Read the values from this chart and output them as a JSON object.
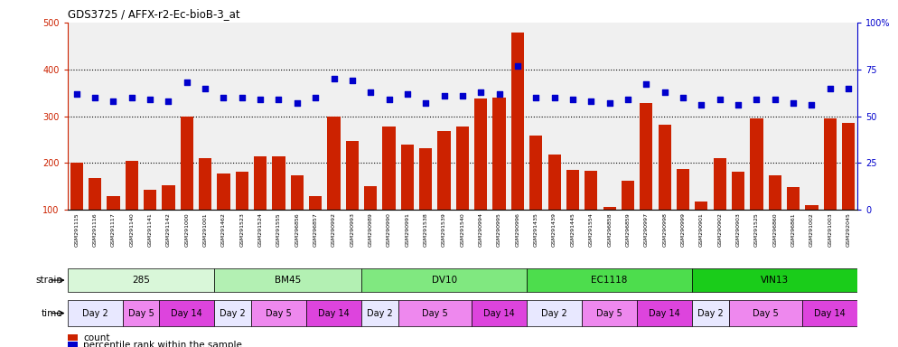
{
  "title": "GDS3725 / AFFX-r2-Ec-bioB-3_at",
  "samples": [
    "GSM291115",
    "GSM291116",
    "GSM291117",
    "GSM291140",
    "GSM291141",
    "GSM291142",
    "GSM291000",
    "GSM291001",
    "GSM291462",
    "GSM291523",
    "GSM291524",
    "GSM291555",
    "GSM296856",
    "GSM296857",
    "GSM290992",
    "GSM290993",
    "GSM290989",
    "GSM290990",
    "GSM290991",
    "GSM291538",
    "GSM291539",
    "GSM291540",
    "GSM290994",
    "GSM290995",
    "GSM290996",
    "GSM291435",
    "GSM291439",
    "GSM291445",
    "GSM291554",
    "GSM296858",
    "GSM296859",
    "GSM290997",
    "GSM290998",
    "GSM290999",
    "GSM290901",
    "GSM290902",
    "GSM290903",
    "GSM291525",
    "GSM296860",
    "GSM296861",
    "GSM291002",
    "GSM291003",
    "GSM292045"
  ],
  "counts": [
    200,
    168,
    130,
    205,
    143,
    152,
    300,
    210,
    178,
    182,
    215,
    215,
    173,
    130,
    300,
    248,
    150,
    278,
    240,
    232,
    268,
    278,
    338,
    340,
    478,
    258,
    218,
    185,
    183,
    107,
    162,
    328,
    282,
    188,
    118,
    210,
    182,
    295,
    173,
    148,
    110,
    295,
    286
  ],
  "percentiles": [
    62,
    60,
    58,
    60,
    59,
    58,
    68,
    65,
    60,
    60,
    59,
    59,
    57,
    60,
    70,
    69,
    63,
    59,
    62,
    57,
    61,
    61,
    63,
    62,
    77,
    60,
    60,
    59,
    58,
    57,
    59,
    67,
    63,
    60,
    56,
    59,
    56,
    59,
    59,
    57,
    56,
    65,
    65
  ],
  "bar_color": "#cc2200",
  "scatter_color": "#0000cc",
  "ylim_left": [
    100,
    500
  ],
  "ylim_right": [
    0,
    100
  ],
  "yticks_left": [
    100,
    200,
    300,
    400,
    500
  ],
  "yticks_right": [
    0,
    25,
    50,
    75,
    100
  ],
  "ytick_labels_right": [
    "0",
    "25",
    "50",
    "75",
    "100%"
  ],
  "hlines": [
    200,
    300,
    400
  ],
  "strains": [
    {
      "label": "285",
      "start": 0,
      "end": 8,
      "color": "#d9f7d9"
    },
    {
      "label": "BM45",
      "start": 8,
      "end": 16,
      "color": "#b3f0b3"
    },
    {
      "label": "DV10",
      "start": 16,
      "end": 25,
      "color": "#80e880"
    },
    {
      "label": "EC1118",
      "start": 25,
      "end": 34,
      "color": "#4ddd4d"
    },
    {
      "label": "VIN13",
      "start": 34,
      "end": 43,
      "color": "#1acc1a"
    }
  ],
  "times": [
    {
      "label": "Day 2",
      "start": 0,
      "end": 3,
      "color": "#e8e8ff"
    },
    {
      "label": "Day 5",
      "start": 3,
      "end": 5,
      "color": "#ee88ee"
    },
    {
      "label": "Day 14",
      "start": 5,
      "end": 8,
      "color": "#dd44dd"
    },
    {
      "label": "Day 2",
      "start": 8,
      "end": 10,
      "color": "#e8e8ff"
    },
    {
      "label": "Day 5",
      "start": 10,
      "end": 13,
      "color": "#ee88ee"
    },
    {
      "label": "Day 14",
      "start": 13,
      "end": 16,
      "color": "#dd44dd"
    },
    {
      "label": "Day 2",
      "start": 16,
      "end": 18,
      "color": "#e8e8ff"
    },
    {
      "label": "Day 5",
      "start": 18,
      "end": 22,
      "color": "#ee88ee"
    },
    {
      "label": "Day 14",
      "start": 22,
      "end": 25,
      "color": "#dd44dd"
    },
    {
      "label": "Day 2",
      "start": 25,
      "end": 28,
      "color": "#e8e8ff"
    },
    {
      "label": "Day 5",
      "start": 28,
      "end": 31,
      "color": "#ee88ee"
    },
    {
      "label": "Day 14",
      "start": 31,
      "end": 34,
      "color": "#dd44dd"
    },
    {
      "label": "Day 2",
      "start": 34,
      "end": 36,
      "color": "#e8e8ff"
    },
    {
      "label": "Day 5",
      "start": 36,
      "end": 40,
      "color": "#ee88ee"
    },
    {
      "label": "Day 14",
      "start": 40,
      "end": 43,
      "color": "#dd44dd"
    }
  ],
  "legend_count_color": "#cc2200",
  "legend_pct_color": "#0000cc",
  "axis_color_left": "#cc2200",
  "axis_color_right": "#0000cc",
  "background_color": "#ffffff",
  "plot_bg_color": "#f0f0f0"
}
